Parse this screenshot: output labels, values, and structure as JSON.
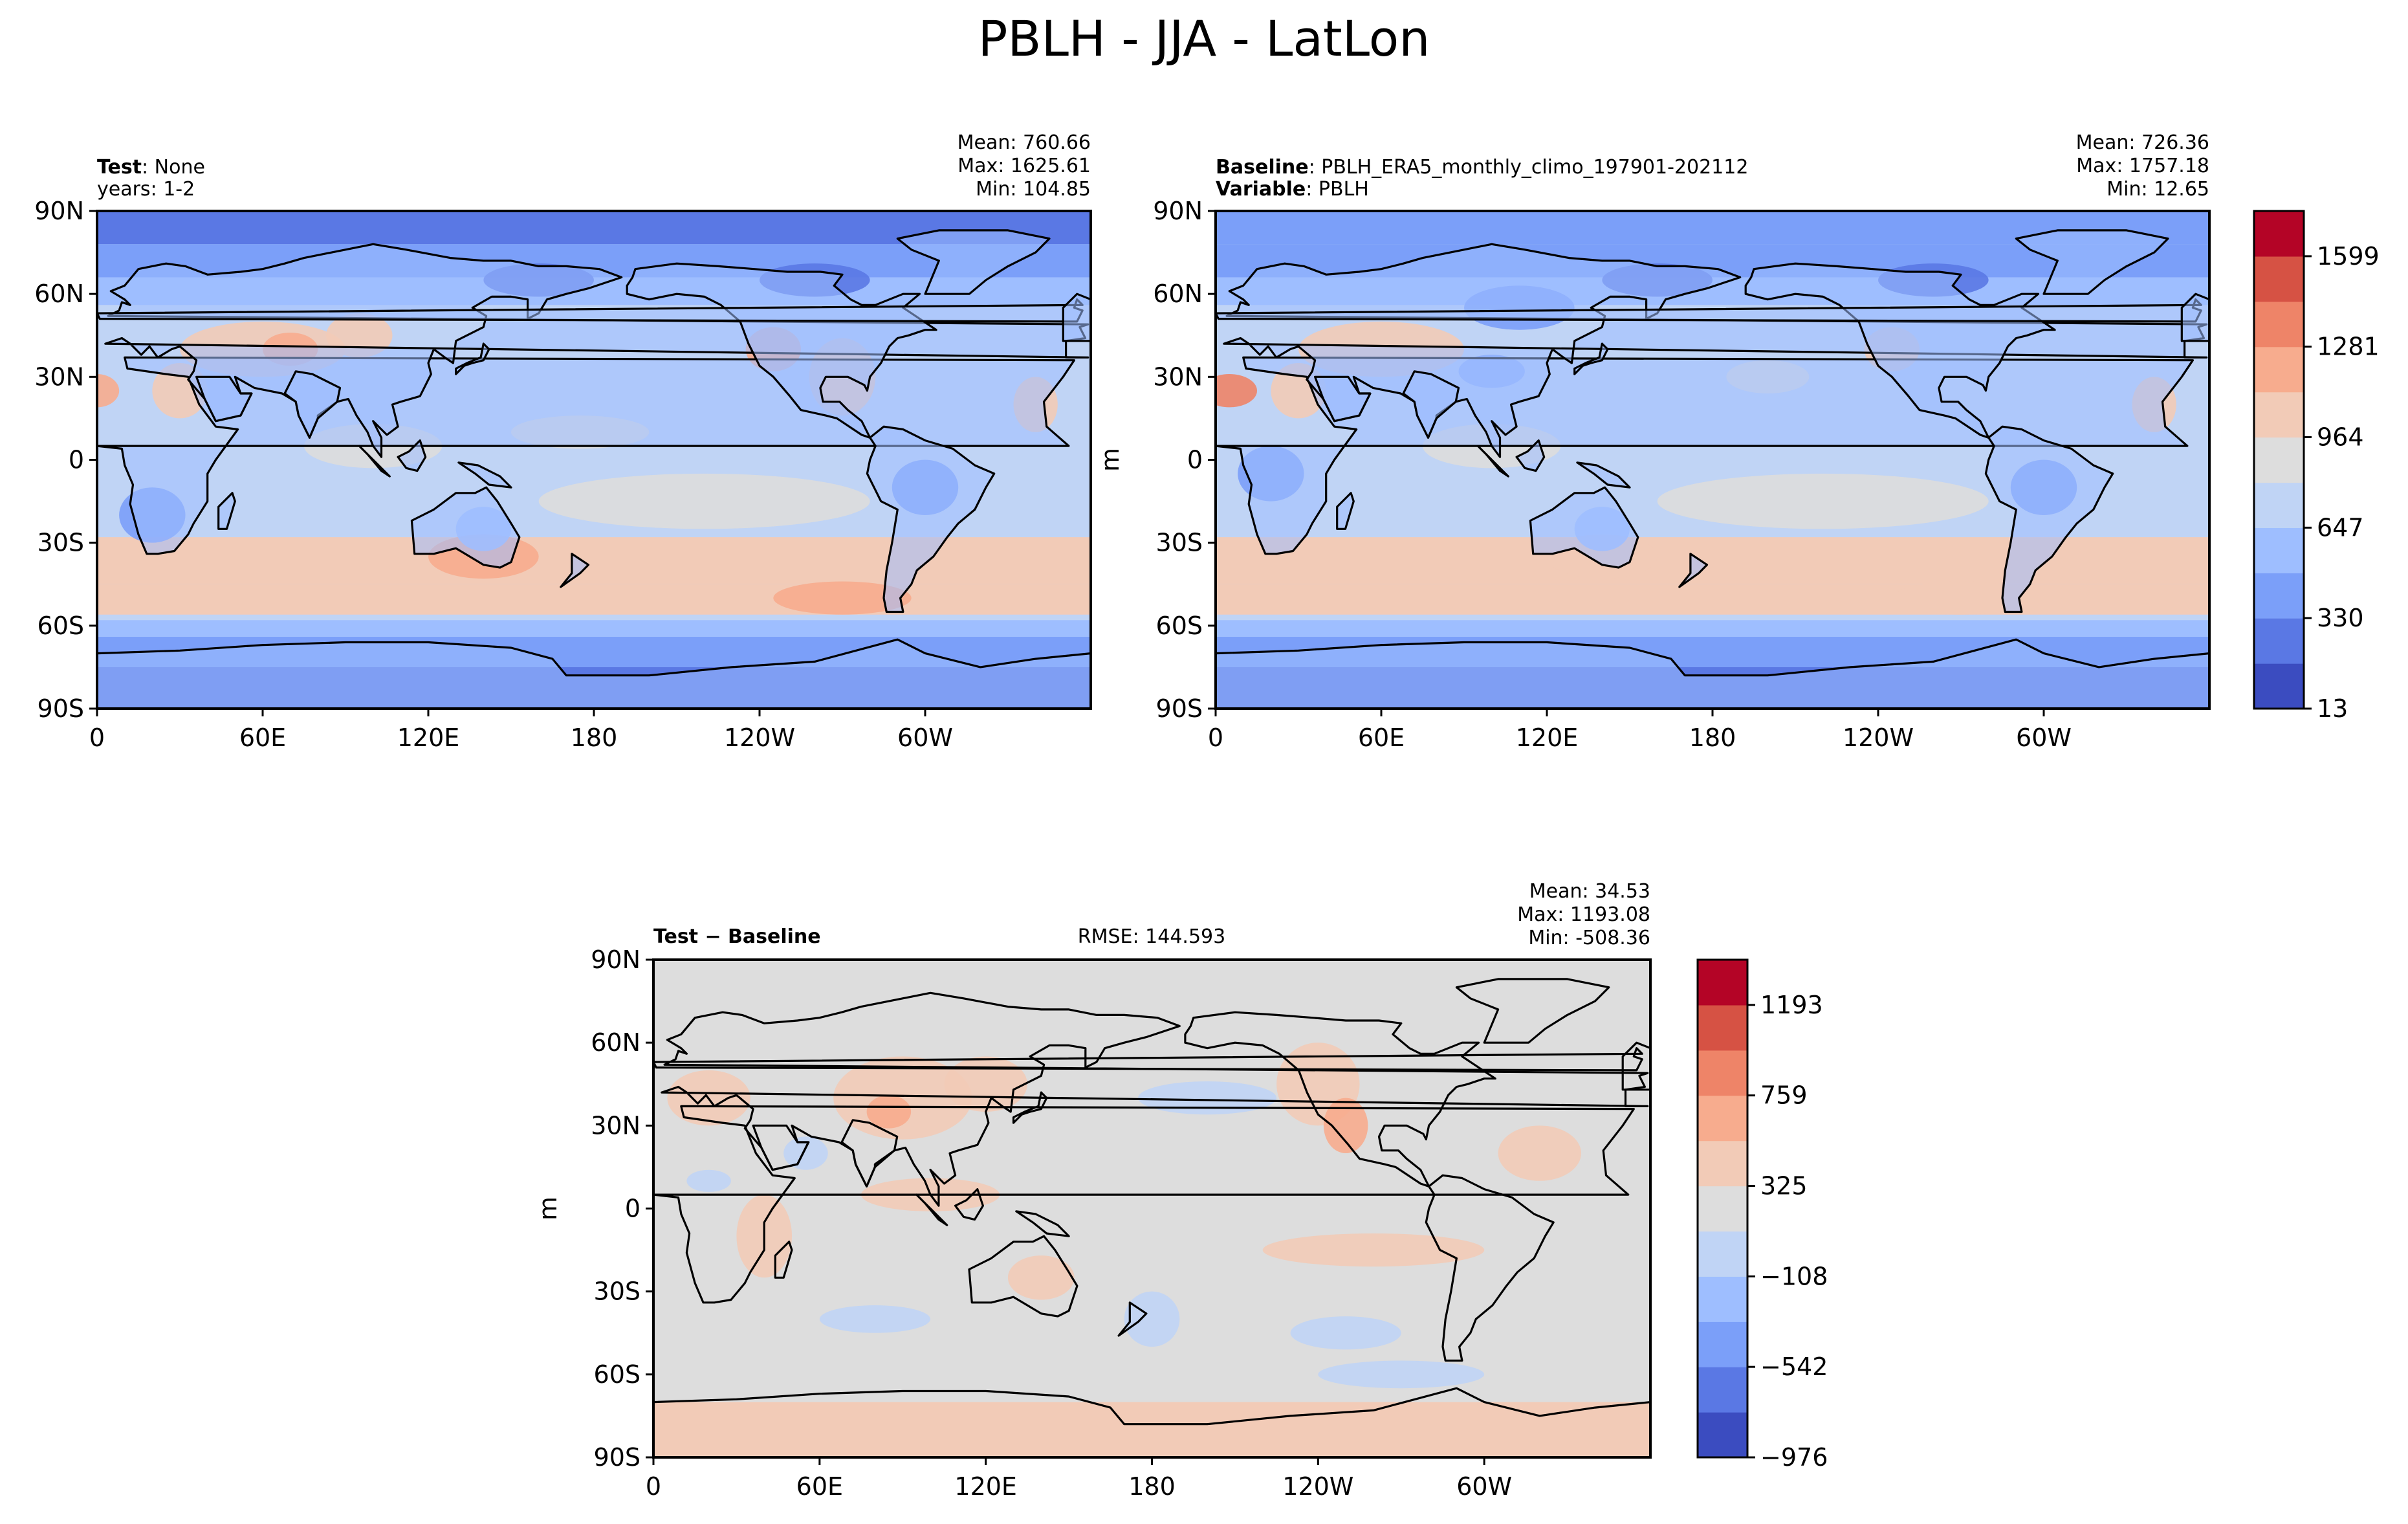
{
  "title": "PBLH - JJA - LatLon",
  "lat_ticks": [
    "90N",
    "60N",
    "30N",
    "0",
    "30S",
    "60S",
    "90S"
  ],
  "lon_ticks": [
    "0",
    "60E",
    "120E",
    "180",
    "120W",
    "60W"
  ],
  "panels": [
    {
      "id": "test",
      "header_line1_bold": "Test",
      "header_line1": ": None",
      "header_line2_bold": "",
      "header_line2": "years: 1-2",
      "stats": [
        "Mean: 760.66",
        "Max: 1625.61",
        "Min: 104.85"
      ],
      "rmse": "",
      "ylabel": ""
    },
    {
      "id": "baseline",
      "header_line1_bold": "Baseline",
      "header_line1": ": PBLH_ERA5_monthly_climo_197901-202112",
      "header_line2_bold": "Variable",
      "header_line2": ": PBLH",
      "stats": [
        "Mean: 726.36",
        "Max: 1757.18",
        "Min: 12.65"
      ],
      "rmse": "",
      "ylabel": "m"
    },
    {
      "id": "diff",
      "header_line1_bold": "Test − Baseline",
      "header_line1": "",
      "header_line2_bold": "",
      "header_line2": "",
      "stats": [
        "Mean: 34.53",
        "Max: 1193.08",
        "Min: -508.36"
      ],
      "rmse": "RMSE: 144.593",
      "ylabel": "m"
    }
  ],
  "colorbars": [
    {
      "id": "top",
      "tick_labels": [
        "1599",
        "1281",
        "964",
        "647",
        "330",
        "13"
      ],
      "colors": [
        "#3b4cc0",
        "#5a78e4",
        "#7b9ff9",
        "#9ebeff",
        "#c0d4f5",
        "#dddddd",
        "#f2cbb7",
        "#f7ac8e",
        "#ee8468",
        "#d65244",
        "#b40426"
      ]
    },
    {
      "id": "diff",
      "tick_labels": [
        "1193",
        "759",
        "325",
        "−108",
        "−542",
        "−976"
      ],
      "colors": [
        "#3b4cc0",
        "#5a78e4",
        "#7b9ff9",
        "#9ebeff",
        "#c0d4f5",
        "#dddddd",
        "#f2cbb7",
        "#f7ac8e",
        "#ee8468",
        "#d65244",
        "#b40426"
      ]
    }
  ],
  "colors": {
    "ocean_test": "#c0d4f5",
    "ocean_baseline": "#c0d4f5",
    "diff_background": "#dddddd",
    "coastline": "#000000"
  }
}
